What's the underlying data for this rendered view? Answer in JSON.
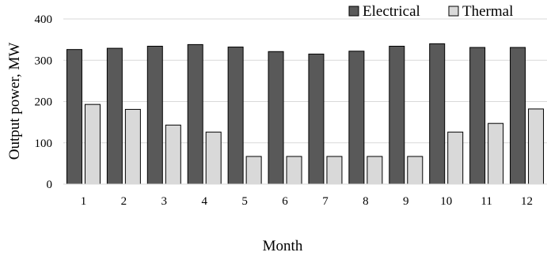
{
  "colors": {
    "electrical": "#595959",
    "thermal": "#d9d9d9",
    "grid": "#d9d9d9"
  },
  "chart_data": {
    "type": "bar",
    "title": "",
    "xlabel": "Month",
    "ylabel": "Output power, MW",
    "ylim": [
      0,
      400
    ],
    "yticks": [
      0,
      100,
      200,
      300,
      400
    ],
    "grid": true,
    "legend_position": "top-right",
    "categories": [
      "1",
      "2",
      "3",
      "4",
      "5",
      "6",
      "7",
      "8",
      "9",
      "10",
      "11",
      "12"
    ],
    "series": [
      {
        "name": "Electrical",
        "values": [
          326,
          329,
          334,
          338,
          332,
          321,
          315,
          322,
          334,
          340,
          331,
          331
        ]
      },
      {
        "name": "Thermal",
        "values": [
          193,
          181,
          143,
          126,
          67,
          67,
          67,
          67,
          67,
          126,
          147,
          182
        ]
      }
    ]
  }
}
